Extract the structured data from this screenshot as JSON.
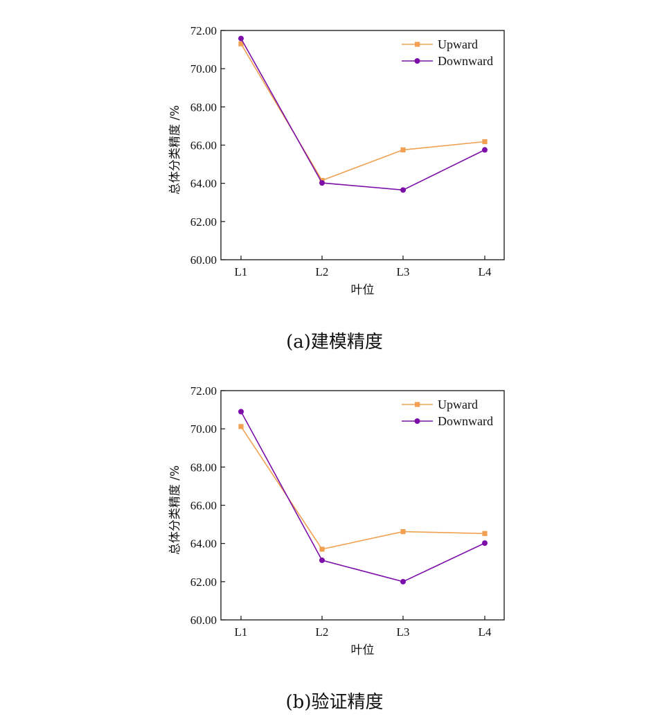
{
  "colors": {
    "upward": "#F0A050",
    "downward": "#7B0FA8",
    "axis": "#111111"
  },
  "chart_data": [
    {
      "type": "line",
      "caption": "(a)建模精度",
      "xlabel": "叶位",
      "ylabel": "总体分类精度 /%",
      "categories": [
        "L1",
        "L2",
        "L3",
        "L4"
      ],
      "ylim": [
        60,
        72
      ],
      "yticks": [
        "60.00",
        "62.00",
        "64.00",
        "66.00",
        "68.00",
        "70.00",
        "72.00"
      ],
      "grid": false,
      "legend_position": "top-right",
      "series": [
        {
          "name": "Upward",
          "marker": "square",
          "values": [
            71.3,
            64.15,
            65.75,
            66.18
          ]
        },
        {
          "name": "Downward",
          "marker": "circle",
          "values": [
            71.58,
            64.02,
            63.65,
            65.75
          ]
        }
      ]
    },
    {
      "type": "line",
      "caption": "(b)验证精度",
      "xlabel": "叶位",
      "ylabel": "总体分类精度 /%",
      "categories": [
        "L1",
        "L2",
        "L3",
        "L4"
      ],
      "ylim": [
        60,
        72
      ],
      "yticks": [
        "60.00",
        "62.00",
        "64.00",
        "66.00",
        "68.00",
        "70.00",
        "72.00"
      ],
      "grid": false,
      "legend_position": "top-right",
      "series": [
        {
          "name": "Upward",
          "marker": "square",
          "values": [
            70.12,
            63.7,
            64.62,
            64.52
          ]
        },
        {
          "name": "Downward",
          "marker": "circle",
          "values": [
            70.9,
            63.12,
            62.0,
            64.02
          ]
        }
      ]
    }
  ]
}
